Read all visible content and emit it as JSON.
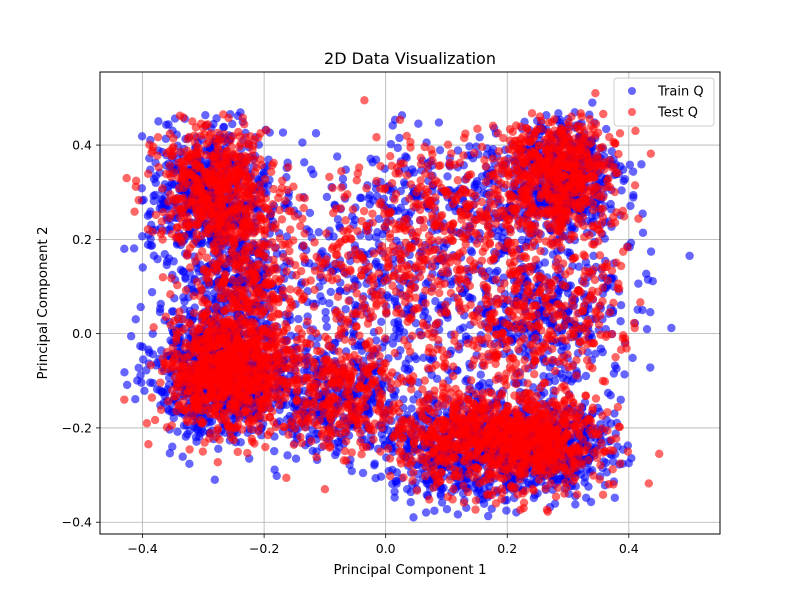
{
  "chart_data": {
    "type": "scatter",
    "title": "2D Data Visualization",
    "xlabel": "Principal Component 1",
    "ylabel": "Principal Component 2",
    "xlim": [
      -0.47,
      0.55
    ],
    "ylim": [
      -0.425,
      0.555
    ],
    "x_ticks": [
      -0.4,
      -0.2,
      0.0,
      0.2,
      0.4
    ],
    "x_tick_labels": [
      "−0.4",
      "−0.2",
      "0.0",
      "0.2",
      "0.4"
    ],
    "y_ticks": [
      -0.4,
      -0.2,
      0.0,
      0.2,
      0.4
    ],
    "y_tick_labels": [
      "−0.4",
      "−0.2",
      "0.0",
      "0.2",
      "0.4"
    ],
    "grid": true,
    "legend_position": "top-right",
    "series": [
      {
        "name": "Train Q",
        "color": "#0000ff",
        "alpha": 0.6,
        "clusters": [
          {
            "cx": -0.27,
            "cy": -0.08,
            "sx": 0.055,
            "sy": 0.07,
            "n": 900
          },
          {
            "cx": -0.29,
            "cy": 0.3,
            "sx": 0.05,
            "sy": 0.07,
            "n": 550
          },
          {
            "cx": -0.25,
            "cy": 0.12,
            "sx": 0.05,
            "sy": 0.07,
            "n": 300
          },
          {
            "cx": 0.29,
            "cy": 0.33,
            "sx": 0.05,
            "sy": 0.065,
            "n": 550
          },
          {
            "cx": 0.27,
            "cy": 0.05,
            "sx": 0.07,
            "sy": 0.08,
            "n": 350
          },
          {
            "cx": 0.26,
            "cy": -0.24,
            "sx": 0.055,
            "sy": 0.05,
            "n": 600
          },
          {
            "cx": 0.12,
            "cy": -0.24,
            "sx": 0.06,
            "sy": 0.055,
            "n": 500
          },
          {
            "cx": -0.08,
            "cy": -0.14,
            "sx": 0.065,
            "sy": 0.06,
            "n": 350
          },
          {
            "cx": 0.03,
            "cy": 0.1,
            "sx": 0.13,
            "sy": 0.14,
            "n": 550
          },
          {
            "cx": 0.12,
            "cy": 0.3,
            "sx": 0.08,
            "sy": 0.07,
            "n": 150
          }
        ],
        "extra_points": [
          [
            0.5,
            0.165
          ],
          [
            0.47,
            0.012
          ],
          [
            0.34,
            0.49
          ],
          [
            -0.43,
            0.18
          ]
        ]
      },
      {
        "name": "Test Q",
        "color": "#ff0000",
        "alpha": 0.6,
        "clusters": [
          {
            "cx": -0.26,
            "cy": -0.08,
            "sx": 0.05,
            "sy": 0.065,
            "n": 850
          },
          {
            "cx": -0.28,
            "cy": 0.31,
            "sx": 0.05,
            "sy": 0.065,
            "n": 500
          },
          {
            "cx": -0.24,
            "cy": 0.13,
            "sx": 0.05,
            "sy": 0.07,
            "n": 250
          },
          {
            "cx": 0.28,
            "cy": 0.34,
            "sx": 0.05,
            "sy": 0.06,
            "n": 550
          },
          {
            "cx": 0.26,
            "cy": 0.05,
            "sx": 0.07,
            "sy": 0.08,
            "n": 300
          },
          {
            "cx": 0.25,
            "cy": -0.23,
            "sx": 0.055,
            "sy": 0.05,
            "n": 550
          },
          {
            "cx": 0.12,
            "cy": -0.22,
            "sx": 0.06,
            "sy": 0.055,
            "n": 450
          },
          {
            "cx": -0.08,
            "cy": -0.13,
            "sx": 0.06,
            "sy": 0.06,
            "n": 300
          },
          {
            "cx": 0.03,
            "cy": 0.12,
            "sx": 0.13,
            "sy": 0.13,
            "n": 500
          },
          {
            "cx": 0.11,
            "cy": 0.3,
            "sx": 0.08,
            "sy": 0.07,
            "n": 150
          }
        ],
        "extra_points": [
          [
            -0.035,
            0.495
          ],
          [
            0.345,
            0.51
          ],
          [
            -0.43,
            -0.14
          ],
          [
            0.45,
            -0.255
          ],
          [
            -0.1,
            -0.33
          ]
        ]
      }
    ]
  }
}
